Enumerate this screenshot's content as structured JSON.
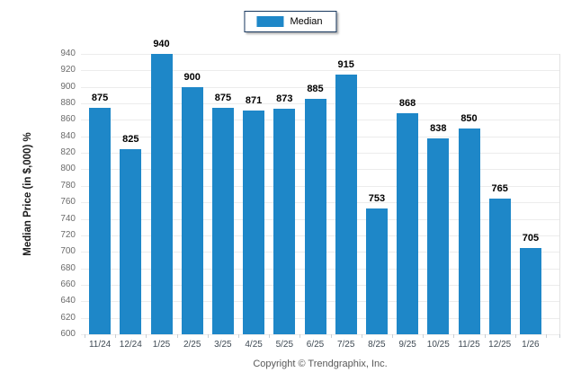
{
  "legend": {
    "label": "Median",
    "swatch_color": "#1e87c8",
    "border_color": "#17375e"
  },
  "chart_data": {
    "type": "bar",
    "title": "",
    "categories": [
      "11/24",
      "12/24",
      "1/25",
      "2/25",
      "3/25",
      "4/25",
      "5/25",
      "6/25",
      "7/25",
      "8/25",
      "9/25",
      "10/25",
      "11/25",
      "12/25",
      "1/26"
    ],
    "series": [
      {
        "name": "Median",
        "values": [
          875,
          825,
          940,
          900,
          875,
          871,
          873,
          885,
          915,
          753,
          868,
          838,
          850,
          765,
          705
        ]
      }
    ],
    "xlabel": "",
    "ylabel": "Median Price (in $,000) %",
    "ylim": [
      600,
      940
    ],
    "ytick_step": 20,
    "yticks": [
      600,
      620,
      640,
      660,
      680,
      700,
      720,
      740,
      760,
      780,
      800,
      820,
      840,
      860,
      880,
      900,
      920,
      940
    ],
    "bar_color": "#1e87c8",
    "grid": true,
    "legend_position": "top-center"
  },
  "footer": {
    "copyright": "Copyright © Trendgraphix, Inc."
  }
}
